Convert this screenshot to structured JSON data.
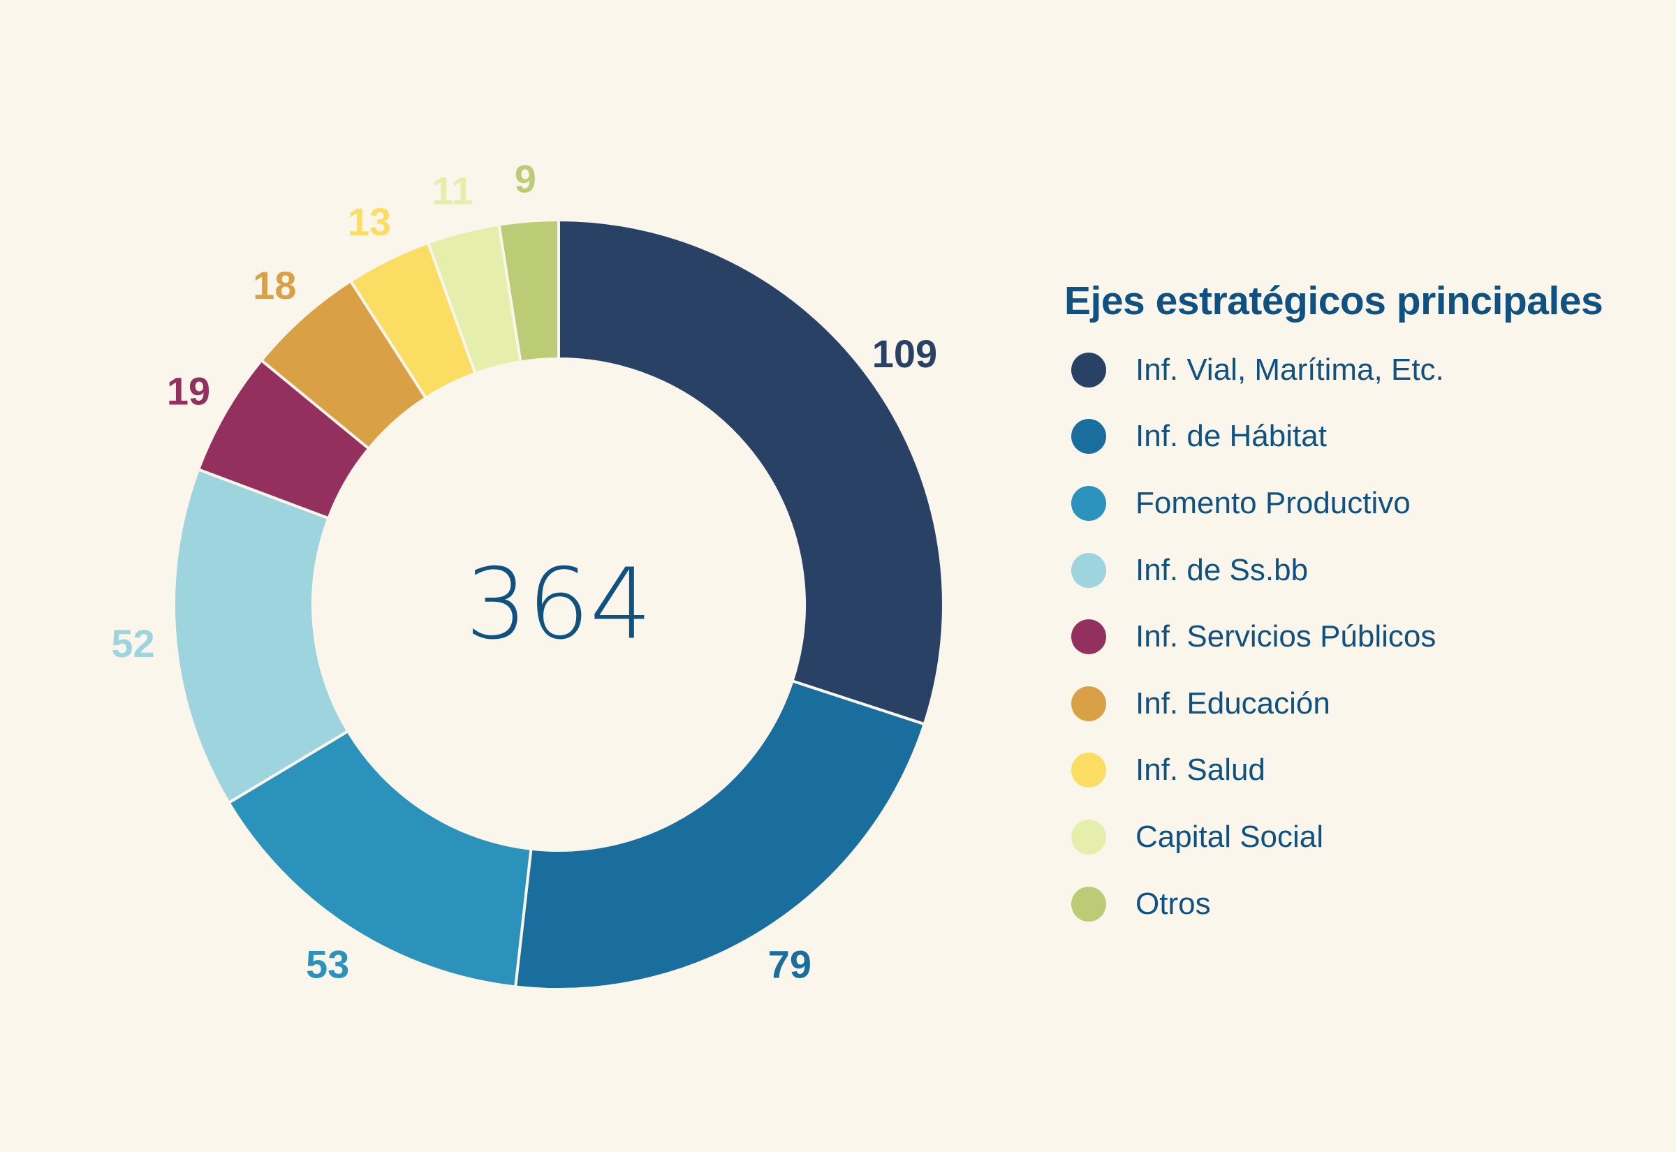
{
  "chart_data": {
    "type": "pie",
    "variant": "donut",
    "title": "Ejes estratégicos principales",
    "center_label": "364",
    "total": 364,
    "legend_position": "right",
    "categories": [
      "Inf. Vial, Marítima, Etc.",
      "Inf. de Hábitat",
      "Fomento Productivo",
      "Inf. de Ss.bb",
      "Inf. Servicios Públicos",
      "Inf. Educación",
      "Inf. Salud",
      "Capital Social",
      "Otros"
    ],
    "values": [
      109,
      79,
      53,
      52,
      19,
      18,
      13,
      11,
      9
    ],
    "value_labels": [
      "109",
      "79",
      "53",
      "52",
      "19",
      "18",
      "13",
      "11",
      "9"
    ],
    "colors": [
      "#2a4166",
      "#1a6e9e",
      "#2b93bb",
      "#9dd4dd",
      "#93305e",
      "#d9a046",
      "#fcdd64",
      "#e5eeaa",
      "#bccb76"
    ]
  }
}
